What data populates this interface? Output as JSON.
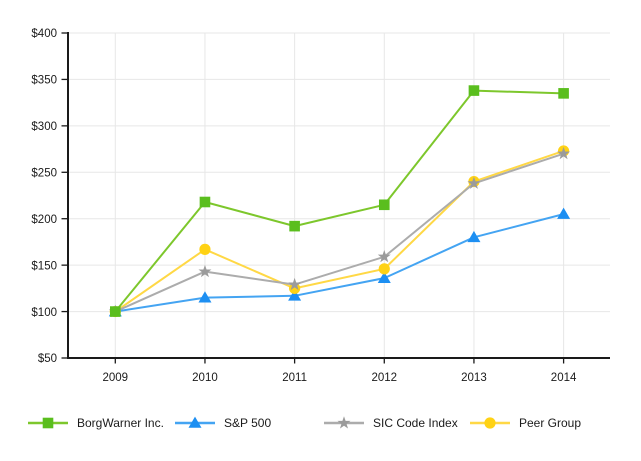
{
  "chart_data": {
    "type": "line",
    "title": "",
    "xlabel": "",
    "ylabel": "",
    "categories": [
      "2009",
      "2010",
      "2011",
      "2012",
      "2013",
      "2014"
    ],
    "ylim": [
      50,
      400
    ],
    "y_tick_interval": 50,
    "y_tick_labels": [
      "$50",
      "$100",
      "$150",
      "$200",
      "$250",
      "$300",
      "$350",
      "$400"
    ],
    "grid": true,
    "legend_position": "bottom",
    "series": [
      {
        "name": "BorgWarner Inc.",
        "marker": "square",
        "line_color": "#7DC72C",
        "marker_color": "#5ABE1E",
        "values": [
          100,
          218,
          192,
          215,
          338,
          335
        ]
      },
      {
        "name": "S&P 500",
        "marker": "triangle",
        "line_color": "#44A4F2",
        "marker_color": "#1D8FF2",
        "values": [
          100,
          115,
          117,
          136,
          180,
          205
        ]
      },
      {
        "name": "SIC Code Index",
        "marker": "star",
        "line_color": "#ACACAC",
        "marker_color": "#9B9B9B",
        "values": [
          100,
          143,
          129,
          159,
          238,
          270
        ]
      },
      {
        "name": "Peer Group",
        "marker": "circle",
        "line_color": "#FFD845",
        "marker_color": "#FFD214",
        "values": [
          100,
          167,
          125,
          146,
          240,
          273
        ]
      }
    ],
    "axis_color": "#1a1a1a",
    "gridline_color": "#E7E7E7"
  }
}
